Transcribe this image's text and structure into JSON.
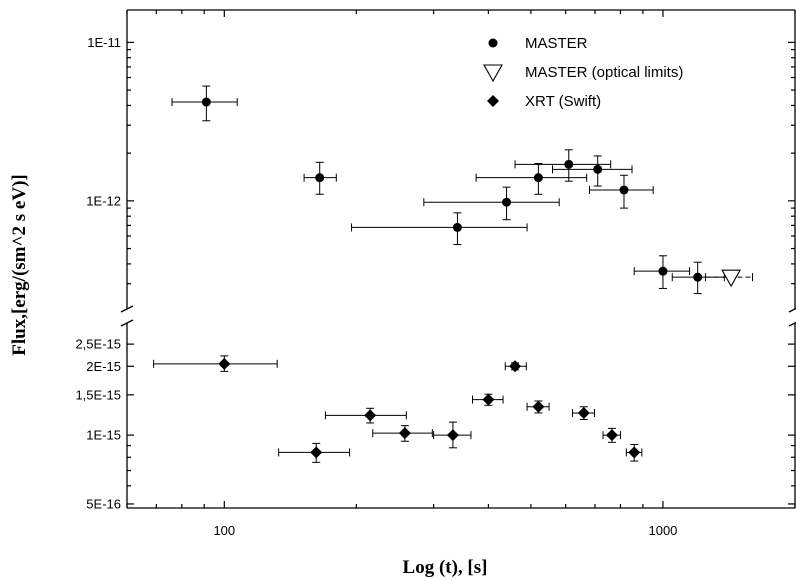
{
  "chart_data": {
    "type": "scatter",
    "xlabel": "Log (t), [s]",
    "ylabel": "Flux,[erg/(sm^2  s  eV)]",
    "x_scale": "log",
    "xlim": [
      60,
      2000
    ],
    "x_ticks": [
      100,
      1000
    ],
    "x_tick_labels": [
      "100",
      "1000"
    ],
    "upper_panel": {
      "y_scale": "log",
      "ylim": [
        2.3e-13,
        1.6e-11
      ],
      "y_ticks": [
        1e-12,
        1e-11
      ],
      "y_tick_labels": [
        "1E-12",
        "1E-11"
      ]
    },
    "lower_panel": {
      "y_scale": "log",
      "ylim": [
        4.8e-16,
        3e-15
      ],
      "y_ticks": [
        5e-16,
        1e-15,
        1.5e-15,
        2e-15,
        2.5e-15
      ],
      "y_tick_labels": [
        "5E-16",
        "1E-15",
        "1,5E-15",
        "2E-15",
        "2,5E-15"
      ]
    },
    "legend": {
      "position": "top-right",
      "entries": [
        "MASTER",
        "MASTER (optical limits)",
        "XRT (Swift)"
      ]
    },
    "series": [
      {
        "name": "MASTER",
        "panel": "upper",
        "marker": "circle",
        "points": [
          {
            "x": 91,
            "y": 4.2e-12,
            "xerr": [
              76,
              107
            ],
            "yerr": [
              3.2e-12,
              5.3e-12
            ]
          },
          {
            "x": 165,
            "y": 1.4e-12,
            "xerr": [
              152,
              180
            ],
            "yerr": [
              1.1e-12,
              1.75e-12
            ]
          },
          {
            "x": 340,
            "y": 6.8e-13,
            "xerr": [
              195,
              490
            ],
            "yerr": [
              5.3e-13,
              8.4e-13
            ]
          },
          {
            "x": 440,
            "y": 9.8e-13,
            "xerr": [
              285,
              580
            ],
            "yerr": [
              7.6e-13,
              1.22e-12
            ]
          },
          {
            "x": 520,
            "y": 1.4e-12,
            "xerr": [
              375,
              670
            ],
            "yerr": [
              1.1e-12,
              1.72e-12
            ]
          },
          {
            "x": 610,
            "y": 1.7e-12,
            "xerr": [
              460,
              760
            ],
            "yerr": [
              1.33e-12,
              2.1e-12
            ]
          },
          {
            "x": 710,
            "y": 1.58e-12,
            "xerr": [
              560,
              850
            ],
            "yerr": [
              1.24e-12,
              1.92e-12
            ]
          },
          {
            "x": 815,
            "y": 1.17e-12,
            "xerr": [
              680,
              950
            ],
            "yerr": [
              9e-13,
              1.45e-12
            ]
          },
          {
            "x": 1000,
            "y": 3.6e-13,
            "xerr": [
              860,
              1150
            ],
            "yerr": [
              2.8e-13,
              4.5e-13
            ]
          },
          {
            "x": 1200,
            "y": 3.3e-13,
            "xerr": [
              1050,
              1380
            ],
            "yerr": [
              2.6e-13,
              4.1e-13
            ]
          }
        ]
      },
      {
        "name": "MASTER (optical limits)",
        "panel": "upper",
        "marker": "triangle-down-open",
        "points": [
          {
            "x": 1430,
            "y": 3.3e-13,
            "xerr": [
              1250,
              1600
            ]
          }
        ]
      },
      {
        "name": "XRT (Swift)",
        "panel": "lower",
        "marker": "diamond",
        "points": [
          {
            "x": 100,
            "y": 2.05e-15,
            "xerr": [
              69,
              132
            ],
            "yerr": [
              1.9e-15,
              2.22e-15
            ]
          },
          {
            "x": 162,
            "y": 8.4e-16,
            "xerr": [
              133,
              193
            ],
            "yerr": [
              7.6e-16,
              9.2e-16
            ]
          },
          {
            "x": 215,
            "y": 1.22e-15,
            "xerr": [
              170,
              260
            ],
            "yerr": [
              1.13e-15,
              1.31e-15
            ]
          },
          {
            "x": 258,
            "y": 1.02e-15,
            "xerr": [
              218,
              298
            ],
            "yerr": [
              9.4e-16,
              1.1e-15
            ]
          },
          {
            "x": 332,
            "y": 1e-15,
            "xerr": [
              300,
              365
            ],
            "yerr": [
              8.8e-16,
              1.14e-15
            ]
          },
          {
            "x": 400,
            "y": 1.43e-15,
            "xerr": [
              368,
              432
            ],
            "yerr": [
              1.35e-15,
              1.51e-15
            ]
          },
          {
            "x": 460,
            "y": 2e-15,
            "xerr": [
              437,
              488
            ],
            "yerr": [
              1.93e-15,
              2.07e-15
            ]
          },
          {
            "x": 520,
            "y": 1.33e-15,
            "xerr": [
              490,
              550
            ],
            "yerr": [
              1.25e-15,
              1.41e-15
            ]
          },
          {
            "x": 660,
            "y": 1.25e-15,
            "xerr": [
              622,
              698
            ],
            "yerr": [
              1.17e-15,
              1.33e-15
            ]
          },
          {
            "x": 765,
            "y": 1e-15,
            "xerr": [
              730,
              800
            ],
            "yerr": [
              9.3e-16,
              1.07e-15
            ]
          },
          {
            "x": 860,
            "y": 8.4e-16,
            "xerr": [
              825,
              895
            ],
            "yerr": [
              7.7e-16,
              9.1e-16
            ]
          }
        ]
      }
    ]
  }
}
